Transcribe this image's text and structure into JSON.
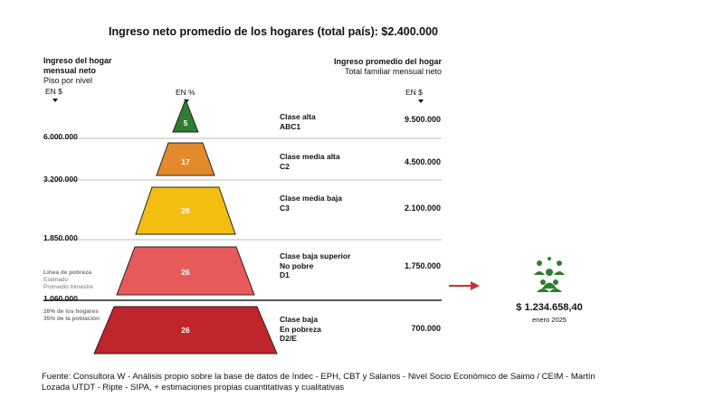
{
  "chart_data": {
    "type": "pyramid",
    "title": "Ingreso neto promedio de los hogares (total país): $2.400.000",
    "left_header": {
      "line1": "Ingreso del hogar",
      "line2": "mensual neto",
      "line3": "Piso por nivel",
      "unit": "EN $"
    },
    "percent_header": "EN %",
    "right_header": {
      "line1": "Ingreso promedio del hogar",
      "line2": "Total familiar mensual neto",
      "unit": "EN $"
    },
    "levels": [
      {
        "pct": "5",
        "value": 5,
        "name_lines": [
          "Clase alta",
          "ABC1"
        ],
        "amount": "9.500.000",
        "color": "#2e7d32"
      },
      {
        "pct": "17",
        "value": 17,
        "name_lines": [
          "Clase media alta",
          "C2"
        ],
        "amount": "4.500.000",
        "color": "#e38a2c"
      },
      {
        "pct": "26",
        "value": 26,
        "name_lines": [
          "Clase media baja",
          "C3"
        ],
        "amount": "2.100.000",
        "color": "#f3be12"
      },
      {
        "pct": "26",
        "value": 26,
        "name_lines": [
          "Clase baja superior",
          "No pobre",
          "D1"
        ],
        "amount": "1.750.000",
        "color": "#e85a5a"
      },
      {
        "pct": "26",
        "value": 26,
        "name_lines": [
          "Clase baja",
          "En pobreza",
          "D2/E"
        ],
        "amount": "700.000",
        "color": "#c0252b"
      }
    ],
    "floors": [
      "6.000.000",
      "3.200.000",
      "1.850.000",
      "1.060.000"
    ],
    "poverty_note": {
      "line1": "Línea de pobreza",
      "line2": "Estimado",
      "line3": "Promedio trimestre"
    },
    "poverty_share": {
      "line1": "26% de los hogares",
      "line2": "35% de la población"
    },
    "callout": {
      "amount": "$ 1.234.658,40",
      "date": "enero 2025",
      "arrow_color": "#d32f2f",
      "icon": "people-group-icon",
      "icon_color": "#2e7d32"
    }
  },
  "source": "Fuente: Consultora W - Análisis propio sobre la base de datos de Indec - EPH, CBT y Salarios - Nivel Socio Económico de Saimo / CEIM - Martín Lozada UTDT - Ripte - SIPA, + estimaciones propias cuantitativas y cualitativas"
}
